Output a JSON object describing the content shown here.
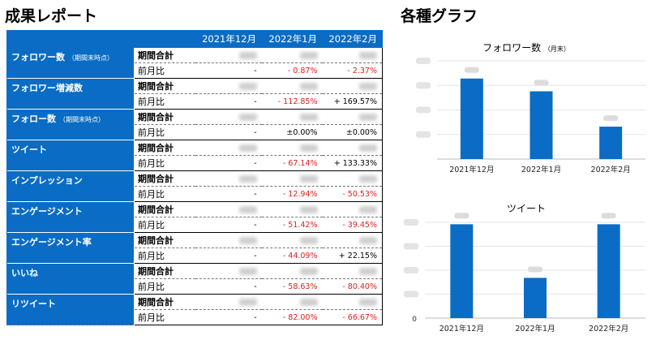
{
  "report": {
    "title": "成果レポート",
    "columns": [
      "2021年12月",
      "2022年1月",
      "2022年2月"
    ],
    "rows": [
      {
        "metric": "フォロワー数",
        "note": "（期間末時点）",
        "total_label": "期間合計",
        "ratio_label": "前月比",
        "ratios": [
          "-",
          "- 0.87%",
          "- 2.37%"
        ],
        "ratio_signs": [
          "none",
          "neg",
          "neg"
        ]
      },
      {
        "metric": "フォロワー増減数",
        "note": "",
        "total_label": "期間合計",
        "ratio_label": "前月比",
        "ratios": [
          "-",
          "- 112.85%",
          "+ 169.57%"
        ],
        "ratio_signs": [
          "none",
          "neg",
          "pos"
        ]
      },
      {
        "metric": "フォロー数",
        "note": "（期間末時点）",
        "total_label": "期間合計",
        "ratio_label": "前月比",
        "ratios": [
          "-",
          "±0.00%",
          "±0.00%"
        ],
        "ratio_signs": [
          "none",
          "pos",
          "pos"
        ]
      },
      {
        "metric": "ツイート",
        "note": "",
        "total_label": "期間合計",
        "ratio_label": "前月比",
        "ratios": [
          "-",
          "- 67.14%",
          "+ 133.33%"
        ],
        "ratio_signs": [
          "none",
          "neg",
          "pos"
        ]
      },
      {
        "metric": "インプレッション",
        "note": "",
        "total_label": "期間合計",
        "ratio_label": "前月比",
        "ratios": [
          "-",
          "- 12.94%",
          "- 50.53%"
        ],
        "ratio_signs": [
          "none",
          "neg",
          "neg"
        ]
      },
      {
        "metric": "エンゲージメント",
        "note": "",
        "total_label": "期間合計",
        "ratio_label": "前月比",
        "ratios": [
          "-",
          "- 51.42%",
          "- 39.45%"
        ],
        "ratio_signs": [
          "none",
          "neg",
          "neg"
        ]
      },
      {
        "metric": "エンゲージメント率",
        "note": "",
        "total_label": "期間合計",
        "ratio_label": "前月比",
        "ratios": [
          "-",
          "- 44.09%",
          "+ 22.15%"
        ],
        "ratio_signs": [
          "none",
          "neg",
          "pos"
        ]
      },
      {
        "metric": "いいね",
        "note": "",
        "total_label": "期間合計",
        "ratio_label": "前月比",
        "ratios": [
          "-",
          "- 58.63%",
          "- 80.40%"
        ],
        "ratio_signs": [
          "none",
          "neg",
          "neg"
        ]
      },
      {
        "metric": "リツイート",
        "note": "",
        "total_label": "期間合計",
        "ratio_label": "前月比",
        "ratios": [
          "-",
          "- 82.00%",
          "- 66.67%"
        ],
        "ratio_signs": [
          "none",
          "neg",
          "neg"
        ]
      }
    ]
  },
  "graphs": {
    "title": "各種グラフ"
  },
  "colors": {
    "header_blue": "#0a6cc4",
    "bar_blue": "#0a6cc4",
    "negative_red": "#e02020"
  },
  "chart_data": [
    {
      "type": "bar",
      "title": "フォロワー数",
      "title_unit": "（月末）",
      "categories": [
        "2021年12月",
        "2022年1月",
        "2022年2月"
      ],
      "values": [
        0.82,
        0.69,
        0.33
      ],
      "value_note": "axis and data labels are blurred; values estimated as relative heights",
      "ylim": [
        0,
        1
      ],
      "grid": true
    },
    {
      "type": "bar",
      "title": "ツイート",
      "categories": [
        "2021年12月",
        "2022年1月",
        "2022年2月"
      ],
      "values": [
        0.98,
        0.42,
        0.98
      ],
      "ytick_zero": "0",
      "ylim": [
        0,
        1
      ],
      "grid": true
    }
  ]
}
